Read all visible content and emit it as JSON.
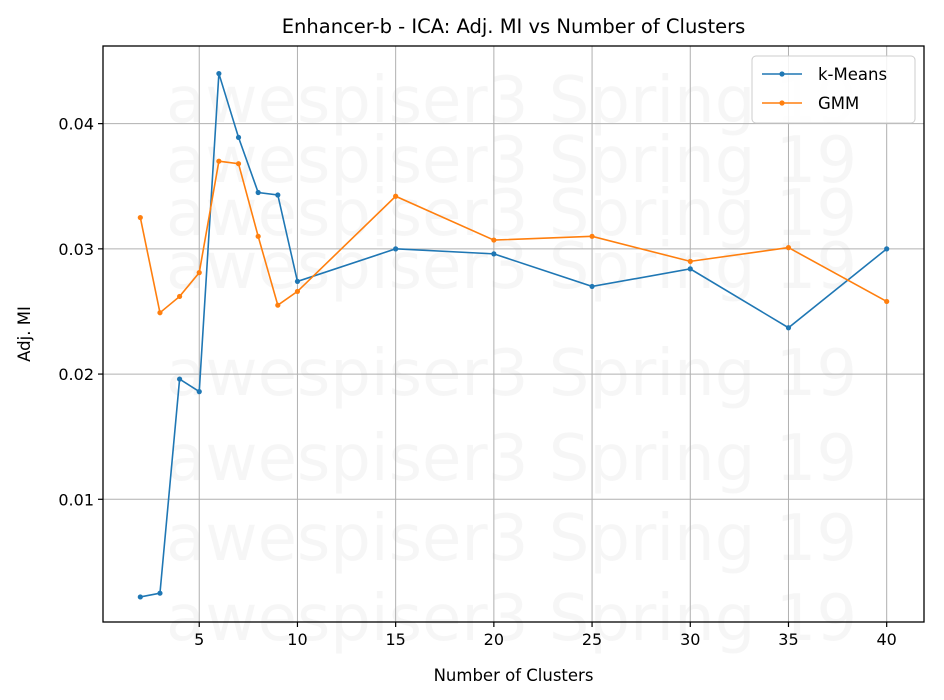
{
  "chart_data": {
    "type": "line",
    "title": "Enhancer-b - ICA: Adj. MI vs Number of Clusters",
    "xlabel": "Number of Clusters",
    "ylabel": "Adj. MI",
    "xlim": [
      0.1,
      41.9
    ],
    "ylim": [
      0.0002,
      0.0462
    ],
    "xticks": [
      5,
      10,
      15,
      20,
      25,
      30,
      35,
      40
    ],
    "yticks": [
      0.01,
      0.02,
      0.03,
      0.04
    ],
    "xtick_labels": [
      "5",
      "10",
      "15",
      "20",
      "25",
      "30",
      "35",
      "40"
    ],
    "ytick_labels": [
      "0.01",
      "0.02",
      "0.03",
      "0.04"
    ],
    "grid": true,
    "legend_position": "top-right",
    "watermark": "awespiser3 Spring 19",
    "x": [
      2,
      3,
      4,
      5,
      6,
      7,
      8,
      9,
      10,
      15,
      20,
      25,
      30,
      35,
      40
    ],
    "series": [
      {
        "name": "k-Means",
        "color": "#1f77b4",
        "values": [
          0.0022,
          0.0025,
          0.0196,
          0.0186,
          0.044,
          0.0389,
          0.0345,
          0.0343,
          0.0274,
          0.03,
          0.0296,
          0.027,
          0.0284,
          0.0237,
          0.03
        ]
      },
      {
        "name": "GMM",
        "color": "#ff7f0e",
        "values": [
          0.0325,
          0.0249,
          0.0262,
          0.0281,
          0.037,
          0.0368,
          0.031,
          0.0255,
          0.0266,
          0.0342,
          0.0307,
          0.031,
          0.029,
          0.0301,
          0.0258
        ]
      }
    ]
  }
}
